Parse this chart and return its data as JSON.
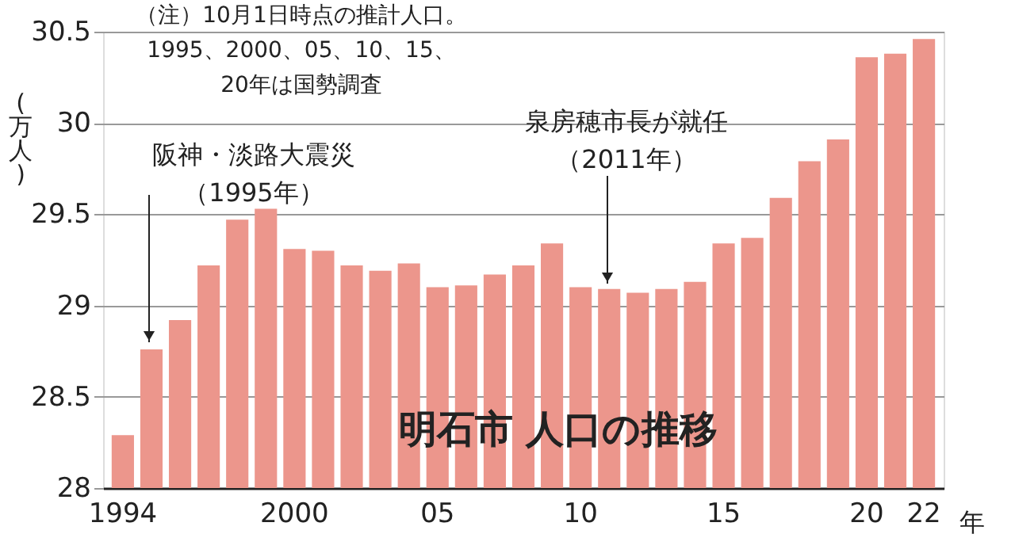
{
  "chart_data": {
    "type": "bar",
    "title": "明石市 人口の推移",
    "ylabel": "(万人)",
    "xlabel": "年",
    "categories": [
      "1994",
      null,
      null,
      null,
      null,
      null,
      "2000",
      null,
      null,
      null,
      null,
      "05",
      null,
      null,
      null,
      null,
      "10",
      null,
      null,
      null,
      null,
      "15",
      null,
      null,
      null,
      null,
      "20",
      null,
      "22"
    ],
    "values": [
      28.29,
      28.76,
      28.92,
      29.22,
      29.47,
      29.53,
      29.31,
      29.3,
      29.22,
      29.19,
      29.23,
      29.1,
      29.11,
      29.17,
      29.22,
      29.34,
      29.1,
      29.09,
      29.07,
      29.09,
      29.13,
      29.34,
      29.37,
      29.59,
      29.79,
      29.91,
      30.36,
      30.38,
      30.46
    ],
    "color": "#ec968c",
    "ylim": [
      28,
      30.5
    ],
    "yticks": [
      28,
      28.5,
      29,
      29.5,
      30,
      30.5
    ],
    "grid": "y",
    "annotations": [
      "（注）10月1日時点の推計人口。\n1995、2000、05、10、15、\n20年は国勢調査",
      "阪神・淡路大震災（1995年）",
      "泉房穂市長が就任（2011年）"
    ]
  }
}
